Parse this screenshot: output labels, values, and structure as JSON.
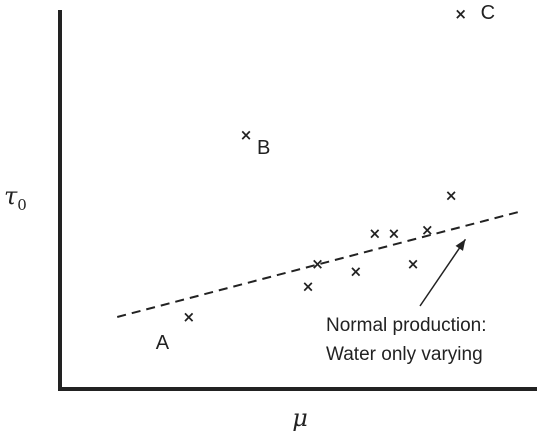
{
  "chart_data": {
    "type": "scatter",
    "title": "",
    "xlabel": "μ",
    "ylabel": "τ0",
    "ylabel_main": "τ",
    "ylabel_sub": "0",
    "xlim": [
      0,
      10
    ],
    "ylim": [
      0,
      10
    ],
    "grid": false,
    "ticks": false,
    "points": [
      {
        "x": 2.7,
        "y": 1.9,
        "label": "A"
      },
      {
        "x": 3.9,
        "y": 6.7,
        "label": "B"
      },
      {
        "x": 8.4,
        "y": 9.9,
        "label": "C"
      },
      {
        "x": 5.2,
        "y": 2.7
      },
      {
        "x": 5.4,
        "y": 3.3
      },
      {
        "x": 6.2,
        "y": 3.1
      },
      {
        "x": 6.6,
        "y": 4.1
      },
      {
        "x": 7.0,
        "y": 4.1
      },
      {
        "x": 7.4,
        "y": 3.3
      },
      {
        "x": 7.7,
        "y": 4.2
      },
      {
        "x": 8.2,
        "y": 5.1
      }
    ],
    "trend_line": {
      "style": "dashed",
      "from": [
        1.2,
        1.9
      ],
      "to": [
        9.7,
        4.7
      ]
    },
    "annotation": {
      "lines": [
        "Normal production:",
        "Water only varying"
      ],
      "arrow_target": [
        8.5,
        3.95
      ]
    }
  }
}
